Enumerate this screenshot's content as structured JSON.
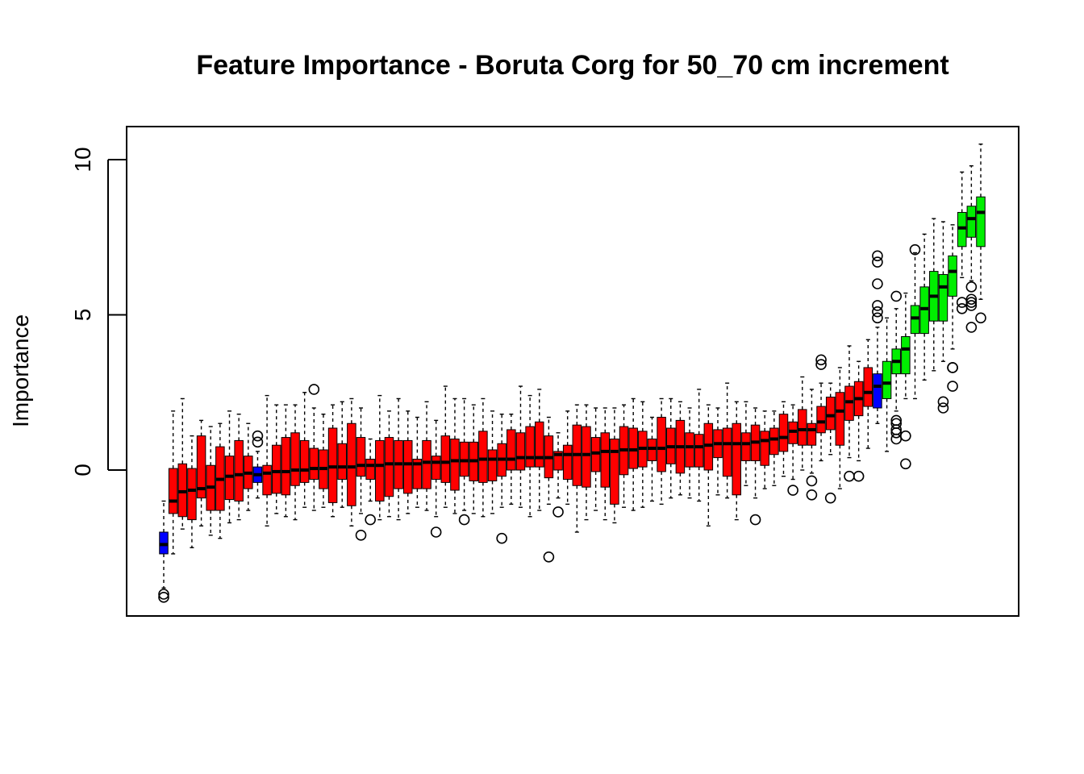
{
  "chart_data": {
    "type": "boxplot",
    "title": "Feature Importance - Boruta Corg for 50_70 cm increment",
    "xlabel": "",
    "ylabel": "Importance",
    "ylim": [
      -4.6,
      11.1
    ],
    "yticks": [
      0,
      5,
      10
    ],
    "grid": false,
    "legend": "none",
    "colors": {
      "rejected": "#ff0000",
      "shadow": "#0000ff",
      "confirmed": "#00ee00",
      "median": "#000000",
      "whisker": "#000000"
    },
    "series": [
      {
        "status": "shadow",
        "whislo": -3.8,
        "q1": -2.7,
        "med": -2.4,
        "q3": -2.0,
        "whishi": -1.0,
        "outliers": [
          -4.0,
          -4.1
        ]
      },
      {
        "status": "rejected",
        "whislo": -2.7,
        "q1": -1.4,
        "med": -1.0,
        "q3": 0.05,
        "whishi": 1.9,
        "outliers": []
      },
      {
        "status": "rejected",
        "whislo": -1.9,
        "q1": -1.5,
        "med": -0.7,
        "q3": 0.2,
        "whishi": 2.3,
        "outliers": []
      },
      {
        "status": "rejected",
        "whislo": -2.5,
        "q1": -1.6,
        "med": -0.65,
        "q3": 0.05,
        "whishi": 1.1,
        "outliers": []
      },
      {
        "status": "rejected",
        "whislo": -1.8,
        "q1": -0.9,
        "med": -0.6,
        "q3": 1.1,
        "whishi": 1.6,
        "outliers": []
      },
      {
        "status": "rejected",
        "whislo": -2.1,
        "q1": -1.3,
        "med": -0.55,
        "q3": 0.15,
        "whishi": 1.4,
        "outliers": []
      },
      {
        "status": "rejected",
        "whislo": -2.2,
        "q1": -1.3,
        "med": -0.3,
        "q3": 0.75,
        "whishi": 1.5,
        "outliers": []
      },
      {
        "status": "rejected",
        "whislo": -1.7,
        "q1": -0.95,
        "med": -0.2,
        "q3": 0.45,
        "whishi": 1.9,
        "outliers": []
      },
      {
        "status": "rejected",
        "whislo": -1.6,
        "q1": -1.0,
        "med": -0.15,
        "q3": 0.95,
        "whishi": 1.8,
        "outliers": []
      },
      {
        "status": "rejected",
        "whislo": -1.3,
        "q1": -0.6,
        "med": -0.1,
        "q3": 0.45,
        "whishi": 1.5,
        "outliers": []
      },
      {
        "status": "shadow",
        "whislo": -0.9,
        "q1": -0.4,
        "med": -0.15,
        "q3": 0.1,
        "whishi": 0.6,
        "outliers": [
          0.9,
          1.1
        ]
      },
      {
        "status": "rejected",
        "whislo": -1.8,
        "q1": -0.8,
        "med": -0.1,
        "q3": 0.15,
        "whishi": 2.4,
        "outliers": []
      },
      {
        "status": "rejected",
        "whislo": -1.4,
        "q1": -0.75,
        "med": -0.05,
        "q3": 0.8,
        "whishi": 2.1,
        "outliers": []
      },
      {
        "status": "rejected",
        "whislo": -1.5,
        "q1": -0.8,
        "med": -0.05,
        "q3": 1.05,
        "whishi": 2.1,
        "outliers": []
      },
      {
        "status": "rejected",
        "whislo": -1.6,
        "q1": -0.5,
        "med": 0.0,
        "q3": 1.2,
        "whishi": 2.1,
        "outliers": []
      },
      {
        "status": "rejected",
        "whislo": -1.2,
        "q1": -0.4,
        "med": 0.0,
        "q3": 0.95,
        "whishi": 2.5,
        "outliers": []
      },
      {
        "status": "rejected",
        "whislo": -1.3,
        "q1": -0.3,
        "med": 0.05,
        "q3": 0.7,
        "whishi": 2.0,
        "outliers": [
          2.6
        ]
      },
      {
        "status": "rejected",
        "whislo": -1.2,
        "q1": -0.6,
        "med": 0.05,
        "q3": 0.65,
        "whishi": 1.8,
        "outliers": []
      },
      {
        "status": "rejected",
        "whislo": -1.5,
        "q1": -1.05,
        "med": 0.1,
        "q3": 1.35,
        "whishi": 2.1,
        "outliers": []
      },
      {
        "status": "rejected",
        "whislo": -1.2,
        "q1": -0.3,
        "med": 0.1,
        "q3": 0.85,
        "whishi": 2.2,
        "outliers": []
      },
      {
        "status": "rejected",
        "whislo": -1.8,
        "q1": -1.15,
        "med": 0.1,
        "q3": 1.5,
        "whishi": 2.3,
        "outliers": []
      },
      {
        "status": "rejected",
        "whislo": -1.4,
        "q1": -0.2,
        "med": 0.15,
        "q3": 1.05,
        "whishi": 2.0,
        "outliers": [
          -2.1
        ]
      },
      {
        "status": "rejected",
        "whislo": -1.0,
        "q1": -0.3,
        "med": 0.15,
        "q3": 0.35,
        "whishi": 1.0,
        "outliers": [
          -1.6
        ]
      },
      {
        "status": "rejected",
        "whislo": -1.6,
        "q1": -1.0,
        "med": 0.15,
        "q3": 0.95,
        "whishi": 2.4,
        "outliers": []
      },
      {
        "status": "rejected",
        "whislo": -1.5,
        "q1": -0.85,
        "med": 0.2,
        "q3": 1.05,
        "whishi": 1.9,
        "outliers": []
      },
      {
        "status": "rejected",
        "whislo": -1.6,
        "q1": -0.6,
        "med": 0.2,
        "q3": 0.95,
        "whishi": 2.3,
        "outliers": []
      },
      {
        "status": "rejected",
        "whislo": -1.4,
        "q1": -0.75,
        "med": 0.2,
        "q3": 0.95,
        "whishi": 1.9,
        "outliers": []
      },
      {
        "status": "rejected",
        "whislo": -1.2,
        "q1": -0.6,
        "med": 0.2,
        "q3": 0.35,
        "whishi": 1.7,
        "outliers": []
      },
      {
        "status": "rejected",
        "whislo": -1.3,
        "q1": -0.6,
        "med": 0.25,
        "q3": 0.95,
        "whishi": 2.2,
        "outliers": []
      },
      {
        "status": "rejected",
        "whislo": -1.5,
        "q1": -0.3,
        "med": 0.25,
        "q3": 0.45,
        "whishi": 1.6,
        "outliers": [
          -2.0
        ]
      },
      {
        "status": "rejected",
        "whislo": -1.2,
        "q1": -0.4,
        "med": 0.25,
        "q3": 1.1,
        "whishi": 2.7,
        "outliers": []
      },
      {
        "status": "rejected",
        "whislo": -1.4,
        "q1": -0.65,
        "med": 0.3,
        "q3": 1.0,
        "whishi": 2.3,
        "outliers": []
      },
      {
        "status": "rejected",
        "whislo": -1.3,
        "q1": -0.2,
        "med": 0.3,
        "q3": 0.9,
        "whishi": 2.3,
        "outliers": [
          -1.6
        ]
      },
      {
        "status": "rejected",
        "whislo": -1.4,
        "q1": -0.35,
        "med": 0.3,
        "q3": 0.9,
        "whishi": 2.1,
        "outliers": []
      },
      {
        "status": "rejected",
        "whislo": -1.5,
        "q1": -0.4,
        "med": 0.35,
        "q3": 1.25,
        "whishi": 2.3,
        "outliers": []
      },
      {
        "status": "rejected",
        "whislo": -1.4,
        "q1": -0.35,
        "med": 0.35,
        "q3": 0.65,
        "whishi": 1.9,
        "outliers": []
      },
      {
        "status": "rejected",
        "whislo": -1.2,
        "q1": -0.2,
        "med": 0.35,
        "q3": 0.85,
        "whishi": 1.8,
        "outliers": [
          -2.2
        ]
      },
      {
        "status": "rejected",
        "whislo": -1.1,
        "q1": 0.0,
        "med": 0.35,
        "q3": 1.3,
        "whishi": 1.8,
        "outliers": []
      },
      {
        "status": "rejected",
        "whislo": -1.2,
        "q1": 0.0,
        "med": 0.4,
        "q3": 1.2,
        "whishi": 2.7,
        "outliers": []
      },
      {
        "status": "rejected",
        "whislo": -1.5,
        "q1": 0.1,
        "med": 0.4,
        "q3": 1.4,
        "whishi": 2.4,
        "outliers": []
      },
      {
        "status": "rejected",
        "whislo": -1.3,
        "q1": 0.1,
        "med": 0.4,
        "q3": 1.55,
        "whishi": 2.6,
        "outliers": []
      },
      {
        "status": "rejected",
        "whislo": -1.1,
        "q1": -0.25,
        "med": 0.4,
        "q3": 1.1,
        "whishi": 1.7,
        "outliers": [
          -2.8
        ]
      },
      {
        "status": "rejected",
        "whislo": -0.9,
        "q1": 0.0,
        "med": 0.5,
        "q3": 0.6,
        "whishi": 1.2,
        "outliers": [
          -1.35
        ]
      },
      {
        "status": "rejected",
        "whislo": -1.1,
        "q1": -0.3,
        "med": 0.5,
        "q3": 0.8,
        "whishi": 1.9,
        "outliers": []
      },
      {
        "status": "rejected",
        "whislo": -2.0,
        "q1": -0.5,
        "med": 0.5,
        "q3": 1.45,
        "whishi": 2.1,
        "outliers": []
      },
      {
        "status": "rejected",
        "whislo": -1.6,
        "q1": -0.55,
        "med": 0.5,
        "q3": 1.4,
        "whishi": 2.1,
        "outliers": []
      },
      {
        "status": "rejected",
        "whislo": -1.3,
        "q1": -0.05,
        "med": 0.55,
        "q3": 1.05,
        "whishi": 2.0,
        "outliers": []
      },
      {
        "status": "rejected",
        "whislo": -1.6,
        "q1": -0.55,
        "med": 0.6,
        "q3": 1.2,
        "whishi": 2.0,
        "outliers": []
      },
      {
        "status": "rejected",
        "whislo": -1.7,
        "q1": -1.1,
        "med": 0.6,
        "q3": 1.0,
        "whishi": 2.0,
        "outliers": []
      },
      {
        "status": "rejected",
        "whislo": -1.2,
        "q1": -0.15,
        "med": 0.65,
        "q3": 1.4,
        "whishi": 2.1,
        "outliers": []
      },
      {
        "status": "rejected",
        "whislo": -1.3,
        "q1": 0.05,
        "med": 0.65,
        "q3": 1.35,
        "whishi": 2.3,
        "outliers": []
      },
      {
        "status": "rejected",
        "whislo": -1.2,
        "q1": 0.1,
        "med": 0.7,
        "q3": 1.25,
        "whishi": 2.2,
        "outliers": []
      },
      {
        "status": "rejected",
        "whislo": -1.0,
        "q1": 0.3,
        "med": 0.7,
        "q3": 1.0,
        "whishi": 1.7,
        "outliers": []
      },
      {
        "status": "rejected",
        "whislo": -1.1,
        "q1": -0.05,
        "med": 0.7,
        "q3": 1.7,
        "whishi": 2.3,
        "outliers": []
      },
      {
        "status": "rejected",
        "whislo": -0.9,
        "q1": 0.2,
        "med": 0.75,
        "q3": 1.35,
        "whishi": 2.3,
        "outliers": []
      },
      {
        "status": "rejected",
        "whislo": -0.8,
        "q1": -0.1,
        "med": 0.75,
        "q3": 1.6,
        "whishi": 2.2,
        "outliers": []
      },
      {
        "status": "rejected",
        "whislo": -0.9,
        "q1": 0.1,
        "med": 0.75,
        "q3": 1.2,
        "whishi": 2.0,
        "outliers": []
      },
      {
        "status": "rejected",
        "whislo": -1.0,
        "q1": 0.1,
        "med": 0.75,
        "q3": 1.15,
        "whishi": 2.6,
        "outliers": []
      },
      {
        "status": "rejected",
        "whislo": -1.8,
        "q1": 0.0,
        "med": 0.8,
        "q3": 1.5,
        "whishi": 2.1,
        "outliers": []
      },
      {
        "status": "rejected",
        "whislo": -0.8,
        "q1": 0.4,
        "med": 0.85,
        "q3": 1.3,
        "whishi": 2.0,
        "outliers": []
      },
      {
        "status": "rejected",
        "whislo": -0.9,
        "q1": -0.2,
        "med": 0.85,
        "q3": 1.35,
        "whishi": 2.8,
        "outliers": []
      },
      {
        "status": "rejected",
        "whislo": -1.6,
        "q1": -0.8,
        "med": 0.85,
        "q3": 1.5,
        "whishi": 2.2,
        "outliers": []
      },
      {
        "status": "rejected",
        "whislo": -0.5,
        "q1": 0.3,
        "med": 0.85,
        "q3": 1.2,
        "whishi": 2.2,
        "outliers": []
      },
      {
        "status": "rejected",
        "whislo": -0.9,
        "q1": 0.3,
        "med": 0.9,
        "q3": 1.45,
        "whishi": 2.0,
        "outliers": [
          -1.6
        ]
      },
      {
        "status": "rejected",
        "whislo": -0.6,
        "q1": 0.15,
        "med": 0.95,
        "q3": 1.25,
        "whishi": 1.9,
        "outliers": []
      },
      {
        "status": "rejected",
        "whislo": -0.5,
        "q1": 0.5,
        "med": 1.0,
        "q3": 1.35,
        "whishi": 1.9,
        "outliers": []
      },
      {
        "status": "rejected",
        "whislo": -0.2,
        "q1": 0.6,
        "med": 1.05,
        "q3": 1.8,
        "whishi": 2.2,
        "outliers": []
      },
      {
        "status": "rejected",
        "whislo": -0.3,
        "q1": 0.85,
        "med": 1.25,
        "q3": 1.55,
        "whishi": 2.1,
        "outliers": [
          -0.65
        ]
      },
      {
        "status": "rejected",
        "whislo": 0.0,
        "q1": 0.8,
        "med": 1.3,
        "q3": 1.95,
        "whishi": 3.0,
        "outliers": []
      },
      {
        "status": "rejected",
        "whislo": -0.1,
        "q1": 0.8,
        "med": 1.3,
        "q3": 1.5,
        "whishi": 2.6,
        "outliers": [
          -0.35,
          -0.8
        ]
      },
      {
        "status": "rejected",
        "whislo": 0.3,
        "q1": 1.2,
        "med": 1.55,
        "q3": 2.05,
        "whishi": 2.8,
        "outliers": [
          3.4,
          3.55
        ]
      },
      {
        "status": "rejected",
        "whislo": 0.5,
        "q1": 1.3,
        "med": 1.75,
        "q3": 2.35,
        "whishi": 2.8,
        "outliers": [
          -0.9
        ]
      },
      {
        "status": "rejected",
        "whislo": -0.6,
        "q1": 0.8,
        "med": 1.9,
        "q3": 2.5,
        "whishi": 3.3,
        "outliers": []
      },
      {
        "status": "rejected",
        "whislo": 0.4,
        "q1": 1.6,
        "med": 2.2,
        "q3": 2.7,
        "whishi": 4.0,
        "outliers": [
          -0.2
        ]
      },
      {
        "status": "rejected",
        "whislo": 0.3,
        "q1": 1.75,
        "med": 2.3,
        "q3": 2.85,
        "whishi": 3.5,
        "outliers": [
          -0.2
        ]
      },
      {
        "status": "rejected",
        "whislo": 0.7,
        "q1": 2.05,
        "med": 2.5,
        "q3": 3.3,
        "whishi": 4.2,
        "outliers": []
      },
      {
        "status": "shadow",
        "whislo": 1.5,
        "q1": 2.0,
        "med": 2.7,
        "q3": 3.1,
        "whishi": 4.6,
        "outliers": [
          4.9,
          5.1,
          5.3,
          6.0,
          6.7,
          6.9
        ]
      },
      {
        "status": "confirmed",
        "whislo": 0.6,
        "q1": 2.3,
        "med": 2.8,
        "q3": 3.5,
        "whishi": 4.9,
        "outliers": []
      },
      {
        "status": "confirmed",
        "whislo": 1.9,
        "q1": 3.1,
        "med": 3.5,
        "q3": 3.9,
        "whishi": 5.2,
        "outliers": [
          1.0,
          1.2,
          1.3,
          1.5,
          1.6,
          5.6
        ]
      },
      {
        "status": "confirmed",
        "whislo": 2.3,
        "q1": 3.1,
        "med": 3.9,
        "q3": 4.3,
        "whishi": 5.7,
        "outliers": [
          0.2,
          1.1
        ]
      },
      {
        "status": "confirmed",
        "whislo": 2.3,
        "q1": 4.4,
        "med": 4.9,
        "q3": 5.3,
        "whishi": 7.0,
        "outliers": [
          7.1
        ]
      },
      {
        "status": "confirmed",
        "whislo": 2.9,
        "q1": 4.4,
        "med": 5.2,
        "q3": 5.9,
        "whishi": 7.6,
        "outliers": []
      },
      {
        "status": "confirmed",
        "whislo": 3.2,
        "q1": 4.8,
        "med": 5.6,
        "q3": 6.4,
        "whishi": 8.1,
        "outliers": []
      },
      {
        "status": "confirmed",
        "whislo": 3.5,
        "q1": 4.8,
        "med": 5.9,
        "q3": 6.3,
        "whishi": 8.0,
        "outliers": [
          2.0,
          2.2
        ]
      },
      {
        "status": "confirmed",
        "whislo": 3.9,
        "q1": 5.6,
        "med": 6.4,
        "q3": 6.9,
        "whishi": 7.9,
        "outliers": [
          2.7,
          3.3,
          3.3
        ]
      },
      {
        "status": "confirmed",
        "whislo": 6.2,
        "q1": 7.2,
        "med": 7.8,
        "q3": 8.3,
        "whishi": 9.6,
        "outliers": [
          5.2,
          5.4
        ]
      },
      {
        "status": "confirmed",
        "whislo": 6.1,
        "q1": 7.5,
        "med": 8.1,
        "q3": 8.5,
        "whishi": 9.8,
        "outliers": [
          4.6,
          5.3,
          5.4,
          5.5,
          5.9
        ]
      },
      {
        "status": "confirmed",
        "whislo": 5.5,
        "q1": 7.2,
        "med": 8.3,
        "q3": 8.8,
        "whishi": 10.5,
        "outliers": [
          4.9
        ]
      }
    ]
  }
}
